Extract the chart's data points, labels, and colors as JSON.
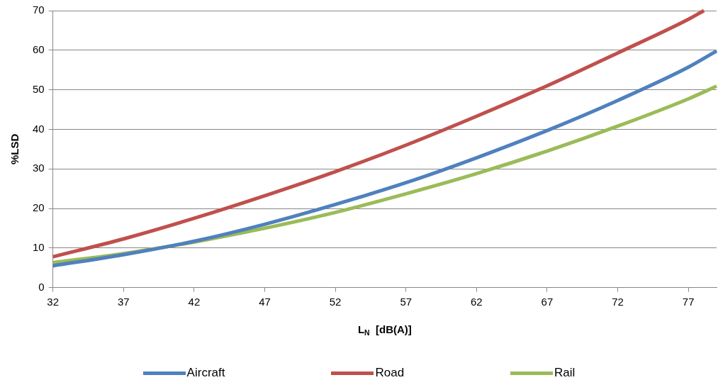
{
  "chart_data": {
    "type": "line",
    "xlabel": "L$_{N}$  [dB(A)]",
    "ylabel": "%LSD",
    "x": [
      32,
      37,
      42,
      47,
      52,
      57,
      62,
      67,
      72,
      77,
      79
    ],
    "series": [
      {
        "name": "Aircraft",
        "color": "#4f81bd",
        "values": [
          5.5,
          8.3,
          11.7,
          16,
          21,
          26.5,
          32.8,
          39.7,
          47.3,
          55.7,
          59.8
        ]
      },
      {
        "name": "Road",
        "color": "#c0504d",
        "x": [
          32,
          37,
          42,
          47,
          52,
          57,
          62,
          67,
          72,
          77,
          78.1
        ],
        "values": [
          7.8,
          12.3,
          17.5,
          23.2,
          29.3,
          36,
          43.3,
          51,
          59.3,
          67.8,
          70
        ]
      },
      {
        "name": "Rail",
        "color": "#9bbb59",
        "values": [
          6.3,
          8.6,
          11.5,
          15,
          19,
          23.7,
          28.8,
          34.5,
          40.8,
          47.7,
          50.9
        ]
      }
    ],
    "xlim": [
      32,
      79
    ],
    "xticks": [
      32,
      37,
      42,
      47,
      52,
      57,
      62,
      67,
      72,
      77
    ],
    "ylim": [
      0,
      70
    ],
    "yticks": [
      0,
      10,
      20,
      30,
      40,
      50,
      60,
      70
    ],
    "grid": "y",
    "legend": "bottom",
    "marker": "none",
    "line_style": "solid"
  }
}
